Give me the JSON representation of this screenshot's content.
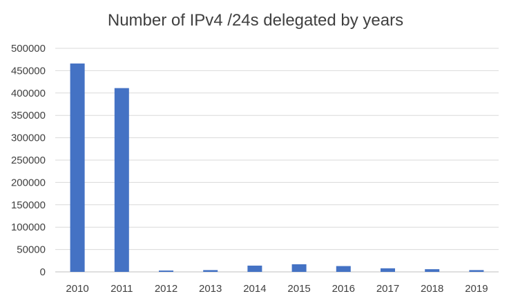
{
  "chart_data": {
    "type": "bar",
    "title": "Number of IPv4 /24s delegated by years",
    "xlabel": "",
    "ylabel": "",
    "categories": [
      "2010",
      "2011",
      "2012",
      "2013",
      "2014",
      "2015",
      "2016",
      "2017",
      "2018",
      "2019"
    ],
    "values": [
      466000,
      411000,
      3000,
      4000,
      14000,
      17000,
      13000,
      8000,
      6000,
      4000
    ],
    "ylim": [
      0,
      500000
    ],
    "yticks": [
      "0",
      "50000",
      "100000",
      "150000",
      "200000",
      "250000",
      "300000",
      "350000",
      "400000",
      "450000",
      "500000"
    ],
    "grid": true,
    "legend": "none",
    "bar_color": "#4472c4"
  }
}
